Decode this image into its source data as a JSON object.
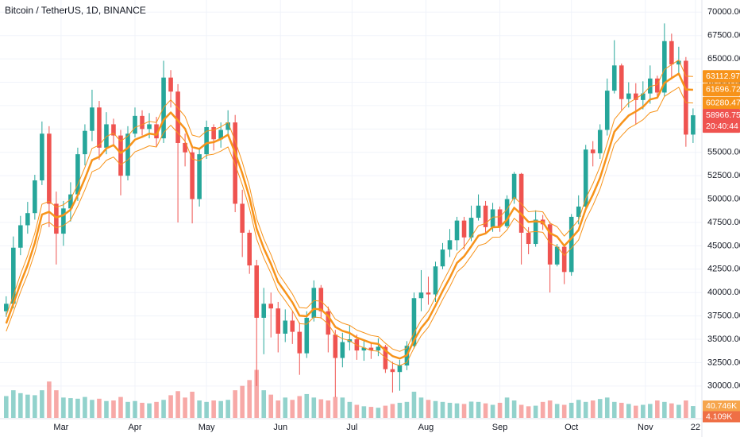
{
  "chart_data": {
    "type": "candlestick",
    "title": "Bitcoin / TetherUS, 1D, BINANCE",
    "up_color": "#26a69a",
    "down_color": "#ef5350",
    "ma_color": "#f7931a",
    "grid": true,
    "x": [
      0,
      3,
      6,
      9,
      12,
      15,
      18,
      21,
      24,
      27,
      30,
      33,
      36,
      39,
      42,
      45,
      48,
      51,
      54,
      57,
      60,
      63,
      66,
      69,
      72,
      75,
      78,
      81,
      84,
      87,
      90,
      93,
      96,
      99,
      102,
      105,
      108,
      111,
      114,
      117,
      120,
      123,
      126,
      129,
      132,
      135,
      138,
      141,
      144,
      147,
      150,
      153,
      156,
      159,
      162,
      165,
      168,
      171,
      174,
      177,
      180,
      183,
      186,
      189,
      192,
      195,
      198,
      201,
      204,
      207,
      210,
      213,
      216,
      219,
      222,
      225,
      228,
      231,
      234,
      237,
      240,
      243,
      246,
      249,
      252,
      255,
      258,
      261,
      264,
      267,
      270,
      273,
      276,
      279,
      282,
      285,
      288
    ],
    "open": [
      38000,
      38800,
      44800,
      47200,
      48500,
      52000,
      57000,
      49500,
      46300,
      49000,
      50500,
      54800,
      57300,
      59800,
      55500,
      58000,
      56800,
      52500,
      57000,
      58900,
      57500,
      58000,
      56500,
      63000,
      61500,
      56000,
      55000,
      50000,
      54800,
      57700,
      56400,
      57400,
      58200,
      49500,
      46400,
      42900,
      37300,
      38800,
      38300,
      35600,
      37000,
      35800,
      33500,
      37300,
      40500,
      38000,
      35500,
      33000,
      34700,
      35000,
      33800,
      34100,
      33800,
      34200,
      31800,
      31500,
      32200,
      34300,
      39400,
      40000,
      39800,
      42800,
      44600,
      45600,
      47700,
      45900,
      48000,
      49300,
      47000,
      48900,
      47100,
      50000,
      52700,
      46400,
      45200,
      47800,
      47300,
      43000,
      44900,
      42200,
      48100,
      49200,
      55300,
      54900,
      57400,
      61600,
      64300,
      60700,
      61300,
      60600,
      61300,
      62900,
      61400,
      66900,
      64400,
      64800,
      56900
    ],
    "high": [
      39600,
      46000,
      48200,
      49700,
      52600,
      58300,
      57800,
      50800,
      49800,
      51800,
      55500,
      58000,
      61700,
      60500,
      59300,
      58600,
      57400,
      57800,
      59800,
      59500,
      59200,
      58800,
      64800,
      63800,
      62300,
      57000,
      55500,
      55300,
      58400,
      58000,
      58200,
      59500,
      59000,
      51000,
      46700,
      43500,
      40500,
      40000,
      39000,
      38200,
      38000,
      36800,
      38000,
      41300,
      40800,
      38500,
      36000,
      35700,
      36500,
      35500,
      35000,
      34700,
      35100,
      34400,
      32600,
      32800,
      34800,
      40000,
      42400,
      41700,
      43300,
      45300,
      46800,
      48100,
      48100,
      49300,
      50500,
      49800,
      49600,
      49200,
      50400,
      52900,
      52800,
      47000,
      48800,
      48300,
      47600,
      45200,
      45100,
      48400,
      50400,
      55800,
      56200,
      58000,
      62900,
      67000,
      64500,
      62500,
      62400,
      62600,
      64300,
      63200,
      68800,
      67700,
      66300,
      65200,
      59700
    ],
    "low": [
      37400,
      38300,
      44000,
      46300,
      47800,
      51500,
      47000,
      43000,
      45000,
      47600,
      49800,
      53600,
      56200,
      54200,
      54800,
      55800,
      50400,
      52000,
      56600,
      56800,
      56500,
      55600,
      56000,
      59800,
      47500,
      53500,
      47400,
      49200,
      54300,
      55200,
      55500,
      56800,
      48600,
      43800,
      42000,
      30000,
      33400,
      35200,
      33600,
      34700,
      34500,
      31200,
      33000,
      36900,
      37200,
      33600,
      28800,
      32000,
      33800,
      32800,
      32700,
      32900,
      33200,
      31400,
      29300,
      29500,
      31700,
      34000,
      38000,
      38700,
      39000,
      42500,
      43800,
      44500,
      44600,
      45500,
      47700,
      46400,
      46500,
      46500,
      46900,
      49500,
      43000,
      44100,
      44900,
      46700,
      40000,
      42800,
      40900,
      41800,
      47300,
      49000,
      53500,
      54300,
      56800,
      61300,
      59500,
      59800,
      58000,
      59600,
      60200,
      60800,
      61000,
      62800,
      63300,
      55600,
      56000
    ],
    "close": [
      38800,
      44800,
      47200,
      48500,
      52000,
      57000,
      49500,
      46300,
      49000,
      50500,
      54800,
      57300,
      59800,
      55500,
      58000,
      56800,
      52500,
      57000,
      58900,
      57500,
      58000,
      56500,
      63000,
      61500,
      56000,
      55000,
      50000,
      54800,
      57700,
      56400,
      57400,
      58200,
      49500,
      46400,
      42900,
      37300,
      38800,
      38300,
      35600,
      37000,
      35800,
      33500,
      37300,
      40500,
      38000,
      35500,
      33000,
      34700,
      35000,
      33800,
      34100,
      33800,
      34200,
      31800,
      31500,
      32200,
      34300,
      39400,
      40000,
      39800,
      42800,
      44600,
      45600,
      47700,
      45900,
      48000,
      49300,
      47000,
      48900,
      47100,
      50000,
      52700,
      46400,
      45200,
      47800,
      47300,
      43000,
      44900,
      42200,
      48100,
      49200,
      55300,
      54900,
      57400,
      61600,
      64300,
      60700,
      61300,
      60600,
      61300,
      62900,
      61400,
      66900,
      64400,
      64800,
      56900,
      58966.75
    ],
    "volume": [
      75,
      95,
      85,
      80,
      78,
      95,
      125,
      95,
      70,
      68,
      66,
      72,
      62,
      66,
      58,
      60,
      72,
      55,
      58,
      52,
      50,
      55,
      62,
      78,
      92,
      70,
      90,
      60,
      55,
      60,
      58,
      62,
      95,
      110,
      130,
      165,
      95,
      80,
      60,
      70,
      62,
      75,
      82,
      70,
      64,
      60,
      72,
      70,
      55,
      45,
      40,
      38,
      35,
      42,
      48,
      52,
      55,
      90,
      70,
      62,
      58,
      55,
      52,
      50,
      48,
      56,
      55,
      50,
      45,
      52,
      70,
      60,
      45,
      40,
      42,
      55,
      60,
      48,
      45,
      52,
      62,
      55,
      60,
      65,
      70,
      55,
      52,
      48,
      42,
      45,
      48,
      60,
      55,
      50,
      45,
      60,
      40.746
    ],
    "ma_middle": [
      36700,
      38800,
      41000,
      42950,
      45300,
      48340,
      48640,
      48030,
      48280,
      48860,
      50400,
      52190,
      54170,
      54520,
      55420,
      55780,
      54930,
      55470,
      56360,
      56660,
      57010,
      56880,
      58470,
      59260,
      58410,
      57520,
      55570,
      55370,
      55980,
      56090,
      56430,
      56890,
      54970,
      52740,
      50180,
      46830,
      44740,
      43070,
      41130,
      40060,
      38950,
      37530,
      37470,
      38260,
      38190,
      37490,
      36320,
      35900,
      35670,
      35180,
      34900,
      34610,
      34500,
      33800,
      33200,
      32940,
      33290,
      34880,
      36210,
      37140,
      38610,
      40170,
      41580,
      43170,
      43880,
      44950,
      46080,
      46320,
      46990,
      47020,
      47800,
      49070,
      48380,
      47550,
      47620,
      47540,
      46360,
      45980,
      45000,
      45810,
      46690,
      48930,
      50480,
      52280,
      54700,
      57200,
      58110,
      58940,
      59370,
      59870,
      60660,
      60850,
      62420,
      62940,
      63420,
      61730,
      61696.72
    ],
    "ma_upper": [
      37540,
      39690,
      41940,
      43940,
      46340,
      49450,
      49760,
      49130,
      49390,
      49980,
      51560,
      53390,
      55420,
      55770,
      56690,
      57060,
      56190,
      56750,
      57660,
      57960,
      58320,
      58190,
      59810,
      60620,
      59750,
      58840,
      56850,
      56640,
      57270,
      57380,
      57730,
      58200,
      56230,
      53950,
      51330,
      47910,
      45770,
      44060,
      42080,
      40980,
      39850,
      38390,
      38330,
      39140,
      39070,
      38350,
      37150,
      36730,
      36490,
      35990,
      35700,
      35410,
      35290,
      34580,
      33960,
      33700,
      34060,
      35680,
      37040,
      37990,
      39500,
      41090,
      42540,
      44160,
      44890,
      45980,
      47140,
      47390,
      48070,
      48100,
      48900,
      50200,
      49490,
      48640,
      48720,
      48630,
      47430,
      47040,
      46040,
      46860,
      47760,
      50060,
      51640,
      53480,
      55960,
      58520,
      59450,
      60300,
      60740,
      61250,
      62050,
      62250,
      63860,
      64390,
      64880,
      63150,
      63112.97
    ],
    "ma_lower": [
      35860,
      37910,
      40060,
      41960,
      44260,
      47230,
      47520,
      46930,
      47170,
      47740,
      49240,
      50990,
      52920,
      53270,
      54150,
      54500,
      53670,
      54190,
      55060,
      55360,
      55700,
      55570,
      57120,
      57900,
      57070,
      56200,
      54290,
      54100,
      54690,
      54800,
      55130,
      55580,
      53710,
      51530,
      49030,
      45750,
      43710,
      42080,
      40180,
      39140,
      38050,
      36670,
      36610,
      37380,
      37310,
      36630,
      35480,
      35070,
      34850,
      34370,
      34100,
      33810,
      33710,
      33020,
      32440,
      32180,
      32520,
      34080,
      35380,
      36290,
      37720,
      39250,
      40620,
      42180,
      42870,
      43920,
      45020,
      45250,
      45910,
      45940,
      46700,
      47940,
      47270,
      46460,
      46530,
      46450,
      45290,
      44920,
      43970,
      44760,
      45620,
      47800,
      49320,
      51080,
      53440,
      55880,
      56770,
      57580,
      58000,
      58490,
      59260,
      59450,
      60980,
      61490,
      61960,
      60310,
      60280.47
    ],
    "countdown": "20:40:44",
    "volume_lim": [
      0,
      300
    ],
    "volume_labels": [
      {
        "value": 40.746,
        "label": "40.746K",
        "color": "#f6a54c"
      },
      {
        "value": 4.109,
        "label": "4.109K",
        "color": "#ef6f45"
      }
    ],
    "xlim": [
      -2.6,
      291.7
    ],
    "xticks": [
      {
        "value": 23,
        "label": "Mar"
      },
      {
        "value": 54,
        "label": "Apr"
      },
      {
        "value": 84,
        "label": "May"
      },
      {
        "value": 115,
        "label": "Jun"
      },
      {
        "value": 145,
        "label": "Jul"
      },
      {
        "value": 176,
        "label": "Aug"
      },
      {
        "value": 207,
        "label": "Sep"
      },
      {
        "value": 237,
        "label": "Oct"
      },
      {
        "value": 268,
        "label": "Nov"
      },
      {
        "value": 289,
        "label": "22"
      }
    ],
    "ylim": [
      26500,
      71300
    ],
    "yticks": [
      {
        "value": 30000,
        "label": "30000.00"
      },
      {
        "value": 32500,
        "label": "32500.00"
      },
      {
        "value": 35000,
        "label": "35000.00"
      },
      {
        "value": 37500,
        "label": "37500.00"
      },
      {
        "value": 40000,
        "label": "40000.00"
      },
      {
        "value": 42500,
        "label": "42500.00"
      },
      {
        "value": 45000,
        "label": "45000.00"
      },
      {
        "value": 47500,
        "label": "47500.00"
      },
      {
        "value": 50000,
        "label": "50000.00"
      },
      {
        "value": 52500,
        "label": "52500.00"
      },
      {
        "value": 55000,
        "label": "55000.00"
      },
      {
        "value": 57500,
        "label": "57500.00"
      },
      {
        "value": 60000,
        "label": "60000.00"
      },
      {
        "value": 62500,
        "label": "62500.00"
      },
      {
        "value": 65000,
        "label": "65000.00"
      },
      {
        "value": 67500,
        "label": "67500.00"
      },
      {
        "value": 70000,
        "label": "70000.00"
      }
    ]
  }
}
